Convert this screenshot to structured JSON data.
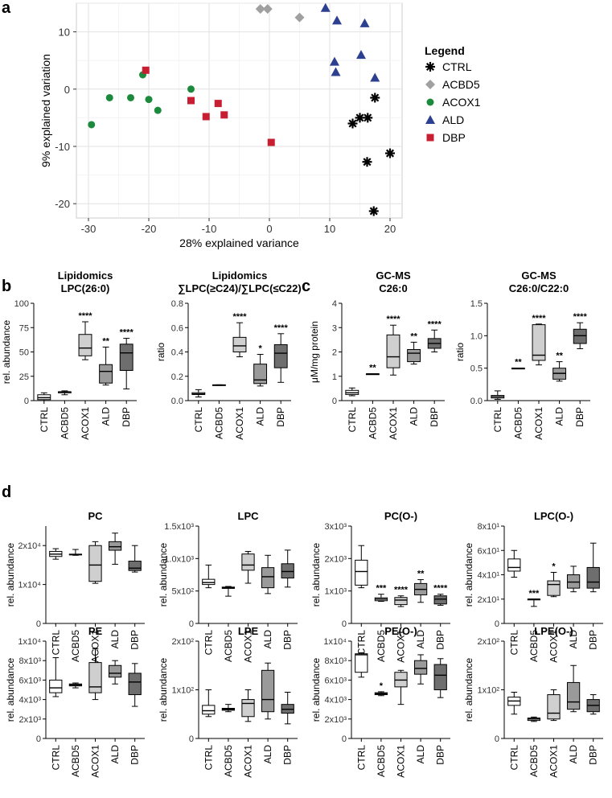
{
  "panel_labels": [
    "a",
    "b",
    "c",
    "d"
  ],
  "colors": {
    "CTRL": "#000000",
    "ACBD5": "#a0a0a0",
    "ACOX1": "#1b8a3c",
    "ALD": "#2d3f8f",
    "DBP": "#c81e32",
    "box_fills": [
      "#ffffff",
      "#ebebeb",
      "#cfcfcf",
      "#9a9a9a",
      "#6e6e6e"
    ]
  },
  "chart_data": [
    {
      "id": "pca",
      "type": "scatter",
      "xlabel": "28% explained variance",
      "ylabel": "9% explained variation",
      "xlim": [
        -32,
        22
      ],
      "ylim": [
        -22.5,
        15
      ],
      "xticks": [
        -30,
        -20,
        -10,
        0,
        10,
        20
      ],
      "yticks": [
        -20,
        -10,
        0,
        10
      ],
      "grid": true,
      "legend": {
        "title": "Legend",
        "position": "right",
        "entries": [
          "CTRL",
          "ACBD5",
          "ACOX1",
          "ALD",
          "DBP"
        ]
      },
      "series": [
        {
          "name": "CTRL",
          "marker": "asterisk",
          "x": [
            17.5,
            13.8,
            15.0,
            16.3,
            20.0,
            16.2,
            17.3
          ],
          "y": [
            -1.5,
            -6.0,
            -5.0,
            -5.0,
            -11.2,
            -12.7,
            -21.3
          ]
        },
        {
          "name": "ACBD5",
          "marker": "diamond",
          "x": [
            -1.5,
            -0.3,
            5.0
          ],
          "y": [
            14.0,
            14.0,
            12.5
          ]
        },
        {
          "name": "ACOX1",
          "marker": "circle",
          "x": [
            -29.5,
            -26.5,
            -23.0,
            -21.0,
            -20.0,
            -18.5,
            -13.0
          ],
          "y": [
            -6.2,
            -1.5,
            -1.5,
            2.5,
            -1.8,
            -3.7,
            0.0
          ]
        },
        {
          "name": "ALD",
          "marker": "triangle",
          "x": [
            9.3,
            11.2,
            15.8,
            10.8,
            15.2,
            11.0,
            17.5
          ],
          "y": [
            14.2,
            12.0,
            11.5,
            4.8,
            6.0,
            3.0,
            2.0
          ]
        },
        {
          "name": "DBP",
          "marker": "square",
          "x": [
            -20.5,
            -13.0,
            -10.5,
            -8.5,
            -7.5,
            0.3
          ],
          "y": [
            3.3,
            -2.0,
            -4.8,
            -2.5,
            -4.5,
            -9.3
          ]
        }
      ]
    },
    {
      "id": "b1",
      "type": "box",
      "title": [
        "Lipidomics",
        "LPC(26:0)"
      ],
      "ylabel": "rel. abundance",
      "ylim": [
        0,
        100
      ],
      "yticks": [
        0,
        25,
        50,
        75,
        100
      ],
      "ytick_labels": [
        "0",
        "25",
        "50",
        "75",
        "100"
      ],
      "categories": [
        "CTRL",
        "ACBD5",
        "ACOX1",
        "ALD",
        "DBP"
      ],
      "boxes": [
        {
          "min": 0,
          "q1": 1,
          "median": 3,
          "q3": 6,
          "max": 8
        },
        {
          "min": 6,
          "q1": 8,
          "median": 9,
          "q3": 9,
          "max": 10
        },
        {
          "min": 42,
          "q1": 46,
          "median": 54,
          "q3": 68,
          "max": 81
        },
        {
          "min": 16,
          "q1": 18,
          "median": 30,
          "q3": 37,
          "max": 55
        },
        {
          "min": 12,
          "q1": 31,
          "median": 49,
          "q3": 58,
          "max": 64
        }
      ],
      "significance": [
        "",
        "",
        "****",
        "**",
        "****"
      ]
    },
    {
      "id": "b2",
      "type": "box",
      "title": [
        "Lipidomics",
        "∑LPC(≥C24)/∑LPC(≤C22)"
      ],
      "ylabel": "ratio",
      "ylim": [
        0,
        0.8
      ],
      "yticks": [
        0,
        0.2,
        0.4,
        0.6,
        0.8
      ],
      "ytick_labels": [
        "0.0",
        "0.2",
        "0.4",
        "0.6",
        "0.8"
      ],
      "categories": [
        "CTRL",
        "ACBD5",
        "ACOX1",
        "ALD",
        "DBP"
      ],
      "boxes": [
        {
          "min": 0.03,
          "q1": 0.05,
          "median": 0.055,
          "q3": 0.065,
          "max": 0.09
        },
        {
          "min": 0.125,
          "q1": 0.127,
          "median": 0.128,
          "q3": 0.13,
          "max": 0.13
        },
        {
          "min": 0.36,
          "q1": 0.4,
          "median": 0.45,
          "q3": 0.52,
          "max": 0.64
        },
        {
          "min": 0.12,
          "q1": 0.14,
          "median": 0.17,
          "q3": 0.3,
          "max": 0.38
        },
        {
          "min": 0.15,
          "q1": 0.27,
          "median": 0.39,
          "q3": 0.46,
          "max": 0.55
        }
      ],
      "significance": [
        "",
        "",
        "****",
        "*",
        "****"
      ]
    },
    {
      "id": "c1",
      "type": "box",
      "title": [
        "GC-MS",
        "C26:0"
      ],
      "ylabel": "μM/mg protein",
      "ylim": [
        0,
        4
      ],
      "yticks": [
        0,
        1,
        2,
        3,
        4
      ],
      "ytick_labels": [
        "0",
        "1",
        "2",
        "3",
        "4"
      ],
      "categories": [
        "CTRL",
        "ACBD5",
        "ACOX1",
        "ALD",
        "DBP"
      ],
      "boxes": [
        {
          "min": 0.2,
          "q1": 0.25,
          "median": 0.32,
          "q3": 0.42,
          "max": 0.52
        },
        {
          "min": 1.1,
          "q1": 1.1,
          "median": 1.1,
          "q3": 1.1,
          "max": 1.1
        },
        {
          "min": 1.05,
          "q1": 1.35,
          "median": 1.8,
          "q3": 2.7,
          "max": 3.1
        },
        {
          "min": 1.5,
          "q1": 1.6,
          "median": 1.95,
          "q3": 2.1,
          "max": 2.4
        },
        {
          "min": 2.0,
          "q1": 2.15,
          "median": 2.35,
          "q3": 2.55,
          "max": 2.9
        }
      ],
      "significance": [
        "",
        "**",
        "****",
        "**",
        "****"
      ]
    },
    {
      "id": "c2",
      "type": "box",
      "title": [
        "GC-MS",
        "C26:0/C22:0"
      ],
      "ylabel": "ratio",
      "ylim": [
        0,
        1.5
      ],
      "yticks": [
        0,
        0.5,
        1.0,
        1.5
      ],
      "ytick_labels": [
        "0.0",
        "0.5",
        "1.0",
        "1.5"
      ],
      "categories": [
        "CTRL",
        "ACBD5",
        "ACOX1",
        "ALD",
        "DBP"
      ],
      "boxes": [
        {
          "min": 0.02,
          "q1": 0.04,
          "median": 0.06,
          "q3": 0.08,
          "max": 0.15
        },
        {
          "min": 0.5,
          "q1": 0.5,
          "median": 0.5,
          "q3": 0.5,
          "max": 0.5
        },
        {
          "min": 0.55,
          "q1": 0.62,
          "median": 0.7,
          "q3": 1.17,
          "max": 1.18
        },
        {
          "min": 0.3,
          "q1": 0.33,
          "median": 0.42,
          "q3": 0.5,
          "max": 0.6
        },
        {
          "min": 0.8,
          "q1": 0.88,
          "median": 1.0,
          "q3": 1.1,
          "max": 1.2
        }
      ],
      "significance": [
        "",
        "**",
        "****",
        "**",
        "****"
      ]
    },
    {
      "id": "PC",
      "type": "box",
      "title": [
        "PC"
      ],
      "ylabel": "rel. abundance",
      "ylim": [
        0,
        25000
      ],
      "yticks": [
        0,
        10000,
        20000
      ],
      "ytick_labels": [
        "0",
        "1x10⁴",
        "2x10⁴"
      ],
      "categories": [
        "CTRL",
        "ACBD5",
        "ACOX1",
        "ALD",
        "DBP"
      ],
      "boxes": [
        {
          "min": 16500,
          "q1": 17200,
          "median": 17800,
          "q3": 18500,
          "max": 19200
        },
        {
          "min": 17500,
          "q1": 17600,
          "median": 17700,
          "q3": 17800,
          "max": 19000
        },
        {
          "min": 10300,
          "q1": 10800,
          "median": 15000,
          "q3": 20000,
          "max": 21000
        },
        {
          "min": 15200,
          "q1": 18800,
          "median": 19700,
          "q3": 21000,
          "max": 23200
        },
        {
          "min": 13200,
          "q1": 13600,
          "median": 14200,
          "q3": 16000,
          "max": 20000
        }
      ],
      "significance": [
        "",
        "",
        "",
        "",
        ""
      ]
    },
    {
      "id": "LPC",
      "type": "box",
      "title": [
        "LPC"
      ],
      "ylabel": "rel. abundance",
      "ylim": [
        0,
        1500
      ],
      "yticks": [
        0,
        500,
        1000,
        1500
      ],
      "ytick_labels": [
        "0",
        "5x10²",
        "1.0x10³",
        "1.5x10³"
      ],
      "categories": [
        "CTRL",
        "ACBD5",
        "ACOX1",
        "ALD",
        "DBP"
      ],
      "boxes": [
        {
          "min": 550,
          "q1": 600,
          "median": 630,
          "q3": 680,
          "max": 900
        },
        {
          "min": 420,
          "q1": 540,
          "median": 550,
          "q3": 560,
          "max": 570
        },
        {
          "min": 620,
          "q1": 820,
          "median": 900,
          "q3": 1070,
          "max": 1110
        },
        {
          "min": 460,
          "q1": 550,
          "median": 720,
          "q3": 860,
          "max": 1050
        },
        {
          "min": 560,
          "q1": 700,
          "median": 800,
          "q3": 920,
          "max": 1130
        }
      ],
      "significance": [
        "",
        "",
        "",
        "",
        ""
      ]
    },
    {
      "id": "PCO",
      "type": "box",
      "title": [
        "PC(O-)"
      ],
      "ylabel": "rel. abundance",
      "ylim": [
        0,
        3000
      ],
      "yticks": [
        0,
        1000,
        2000,
        3000
      ],
      "ytick_labels": [
        "0",
        "1x10³",
        "2x10³",
        "3x10³"
      ],
      "categories": [
        "CTRL",
        "ACBD5",
        "ACOX1",
        "ALD",
        "DBP"
      ],
      "boxes": [
        {
          "min": 1100,
          "q1": 1180,
          "median": 1600,
          "q3": 1950,
          "max": 2400
        },
        {
          "min": 680,
          "q1": 700,
          "median": 750,
          "q3": 790,
          "max": 900
        },
        {
          "min": 520,
          "q1": 580,
          "median": 720,
          "q3": 800,
          "max": 850
        },
        {
          "min": 650,
          "q1": 880,
          "median": 1050,
          "q3": 1230,
          "max": 1350
        },
        {
          "min": 560,
          "q1": 600,
          "median": 750,
          "q3": 850,
          "max": 900
        }
      ],
      "significance": [
        "",
        "***",
        "****",
        "**",
        "****"
      ]
    },
    {
      "id": "LPCO",
      "type": "box",
      "title": [
        "LPC(O-)"
      ],
      "ylabel": "rel. abundance",
      "ylim": [
        0,
        80
      ],
      "yticks": [
        0,
        20,
        40,
        60,
        80
      ],
      "ytick_labels": [
        "0",
        "2x10¹",
        "4x10¹",
        "6x10¹",
        "8x10¹"
      ],
      "categories": [
        "CTRL",
        "ACBD5",
        "ACOX1",
        "ALD",
        "DBP"
      ],
      "boxes": [
        {
          "min": 38,
          "q1": 43,
          "median": 46,
          "q3": 53,
          "max": 60
        },
        {
          "min": 14,
          "q1": 20,
          "median": 20,
          "q3": 20,
          "max": 20
        },
        {
          "min": 22,
          "q1": 23,
          "median": 32,
          "q3": 35,
          "max": 42
        },
        {
          "min": 26,
          "q1": 29,
          "median": 34,
          "q3": 40,
          "max": 47
        },
        {
          "min": 26,
          "q1": 29,
          "median": 34,
          "q3": 46,
          "max": 66
        }
      ],
      "significance": [
        "",
        "***",
        "*",
        "",
        ""
      ]
    },
    {
      "id": "PE",
      "type": "box",
      "title": [
        "PE"
      ],
      "ylabel": "rel. abundance",
      "ylim": [
        0,
        10000
      ],
      "yticks": [
        0,
        2000,
        4000,
        6000,
        8000,
        10000
      ],
      "ytick_labels": [
        "0",
        "2x10³",
        "4x10³",
        "6x10³",
        "8x10³",
        "1x10⁴"
      ],
      "categories": [
        "CTRL",
        "ACBD5",
        "ACOX1",
        "ALD",
        "DBP"
      ],
      "boxes": [
        {
          "min": 4300,
          "q1": 4700,
          "median": 5200,
          "q3": 6000,
          "max": 8300
        },
        {
          "min": 5200,
          "q1": 5400,
          "median": 5500,
          "q3": 5600,
          "max": 5700
        },
        {
          "min": 4000,
          "q1": 4700,
          "median": 5300,
          "q3": 7800,
          "max": 9200
        },
        {
          "min": 5600,
          "q1": 6300,
          "median": 6700,
          "q3": 7500,
          "max": 8000
        },
        {
          "min": 3300,
          "q1": 4500,
          "median": 5800,
          "q3": 6700,
          "max": 7700
        }
      ],
      "significance": [
        "",
        "",
        "",
        "",
        ""
      ]
    },
    {
      "id": "LPE",
      "type": "box",
      "title": [
        "LPE"
      ],
      "ylabel": "rel. abundance",
      "ylim": [
        0,
        200
      ],
      "yticks": [
        0,
        100,
        200
      ],
      "ytick_labels": [
        "0",
        "1x10²",
        "2x10²"
      ],
      "categories": [
        "CTRL",
        "ACBD5",
        "ACOX1",
        "ALD",
        "DBP"
      ],
      "boxes": [
        {
          "min": 45,
          "q1": 50,
          "median": 57,
          "q3": 68,
          "max": 100
        },
        {
          "min": 55,
          "q1": 58,
          "median": 60,
          "q3": 62,
          "max": 70
        },
        {
          "min": 35,
          "q1": 45,
          "median": 72,
          "q3": 80,
          "max": 100
        },
        {
          "min": 40,
          "q1": 55,
          "median": 80,
          "q3": 140,
          "max": 155
        },
        {
          "min": 30,
          "q1": 52,
          "median": 60,
          "q3": 70,
          "max": 95
        }
      ],
      "significance": [
        "",
        "",
        "",
        "",
        ""
      ]
    },
    {
      "id": "PEO",
      "type": "box",
      "title": [
        "PE(O-)"
      ],
      "ylabel": "rel. abundance",
      "ylim": [
        0,
        10000
      ],
      "yticks": [
        0,
        2000,
        4000,
        6000,
        8000,
        10000
      ],
      "ytick_labels": [
        "0",
        "2x10³",
        "4x10³",
        "6x10³",
        "8x10³",
        "1x10⁴"
      ],
      "categories": [
        "CTRL",
        "ACBD5",
        "ACOX1",
        "ALD",
        "DBP"
      ],
      "boxes": [
        {
          "min": 6300,
          "q1": 6800,
          "median": 8600,
          "q3": 8700,
          "max": 8800
        },
        {
          "min": 4400,
          "q1": 4500,
          "median": 4600,
          "q3": 4700,
          "max": 4800
        },
        {
          "min": 3500,
          "q1": 5300,
          "median": 6000,
          "q3": 6800,
          "max": 7000
        },
        {
          "min": 5600,
          "q1": 6600,
          "median": 7200,
          "q3": 8000,
          "max": 8600
        },
        {
          "min": 4200,
          "q1": 5000,
          "median": 6500,
          "q3": 7600,
          "max": 8200
        }
      ],
      "significance": [
        "",
        "*",
        "",
        "",
        ""
      ]
    },
    {
      "id": "LPEO",
      "type": "box",
      "title": [
        "LPE(O-)"
      ],
      "ylabel": "rel. abundance",
      "ylim": [
        0,
        200
      ],
      "yticks": [
        0,
        100,
        200
      ],
      "ytick_labels": [
        "0",
        "1x10²",
        "2x10²"
      ],
      "categories": [
        "CTRL",
        "ACBD5",
        "ACOX1",
        "ALD",
        "DBP"
      ],
      "boxes": [
        {
          "min": 50,
          "q1": 68,
          "median": 77,
          "q3": 85,
          "max": 95
        },
        {
          "min": 35,
          "q1": 37,
          "median": 40,
          "q3": 42,
          "max": 44
        },
        {
          "min": 37,
          "q1": 40,
          "median": 52,
          "q3": 90,
          "max": 100
        },
        {
          "min": 55,
          "q1": 60,
          "median": 75,
          "q3": 115,
          "max": 150
        },
        {
          "min": 50,
          "q1": 55,
          "median": 68,
          "q3": 80,
          "max": 90
        }
      ],
      "significance": [
        "",
        "",
        "",
        "",
        ""
      ]
    }
  ]
}
